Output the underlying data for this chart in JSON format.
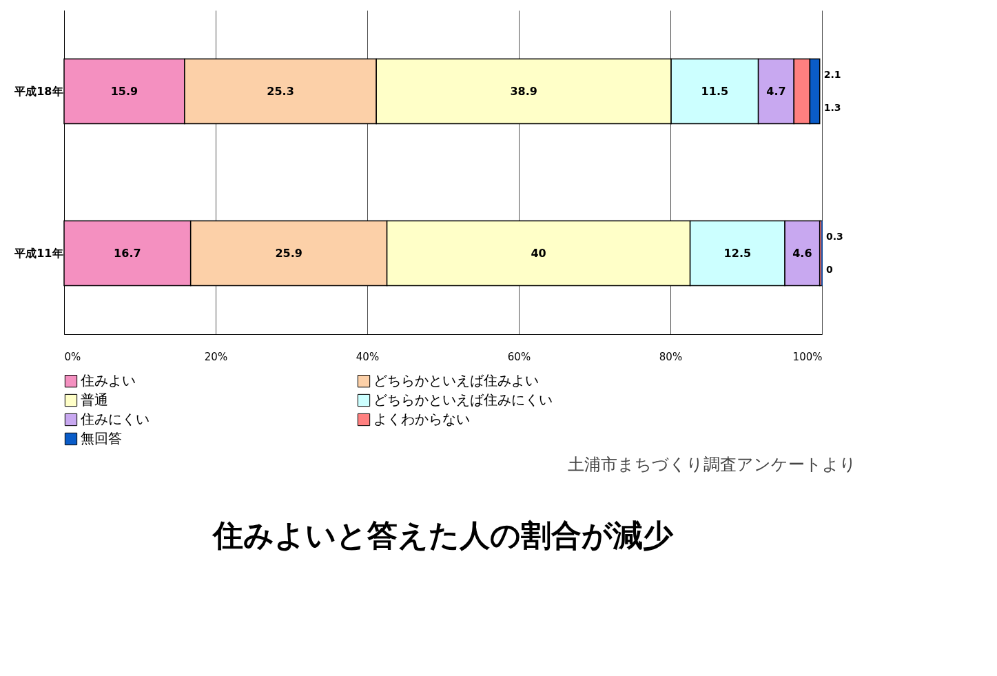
{
  "chart_data": {
    "type": "bar",
    "orientation": "horizontal",
    "stacked": true,
    "title": "住みよいと答えた人の割合が減少",
    "annotations": [
      "土浦市まちづくり調査アンケートより"
    ],
    "categories": [
      "平成18年",
      "平成11年"
    ],
    "series": [
      {
        "name": "住みよい",
        "color": "#f490c0",
        "values": [
          15.9,
          16.7
        ]
      },
      {
        "name": "どちらかといえば住みよい",
        "color": "#fcd0a8",
        "values": [
          25.3,
          25.9
        ]
      },
      {
        "name": "普通",
        "color": "#ffffc8",
        "values": [
          38.9,
          40
        ]
      },
      {
        "name": "どちらかといえば住みにくい",
        "color": "#ccffff",
        "values": [
          11.5,
          12.5
        ]
      },
      {
        "name": "住みにくい",
        "color": "#c8a8f0",
        "values": [
          4.7,
          4.6
        ]
      },
      {
        "name": "よくわからない",
        "color": "#ff8080",
        "values": [
          2.1,
          0.3
        ]
      },
      {
        "name": "無回答",
        "color": "#0a5cc8",
        "values": [
          1.3,
          0
        ]
      }
    ],
    "xlim": [
      0,
      100
    ],
    "xticks": [
      {
        "value": 0,
        "label": "0%"
      },
      {
        "value": 20,
        "label": "20%"
      },
      {
        "value": 40,
        "label": "40%"
      },
      {
        "value": 60,
        "label": "60%"
      },
      {
        "value": 80,
        "label": "80%"
      },
      {
        "value": 100,
        "label": "100%"
      }
    ],
    "grid": "x",
    "legend": "bottom",
    "data_labels": true
  }
}
